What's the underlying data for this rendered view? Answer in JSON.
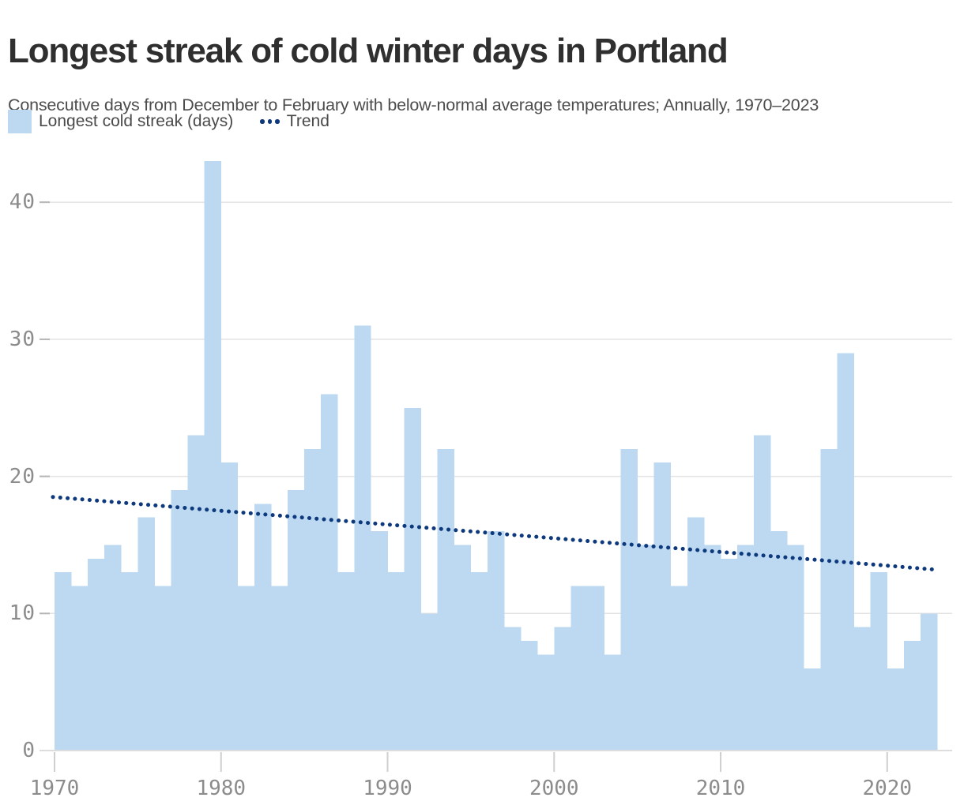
{
  "header": {
    "title": "Longest streak of cold winter days in Portland",
    "subtitle": "Consecutive days from December to February with below-normal average temperatures; Annually, 1970–2023"
  },
  "legend": {
    "series_label": "Longest cold streak (days)",
    "trend_label": "Trend"
  },
  "colors": {
    "bar": "#bcd9f1",
    "trend": "#0e3a7d",
    "gridline": "#e3e3e3",
    "axis_line": "#dddddd",
    "y_tick_stub": "#b5b5b5",
    "x_tick_stub": "#cfcfcf",
    "tick_label": "#8c8c8c",
    "title": "#2f2f2f",
    "subtitle": "#4d4d4d"
  },
  "chart_data": {
    "type": "bar",
    "title": "Longest streak of cold winter days in Portland",
    "xlabel": "",
    "ylabel": "",
    "grid": true,
    "legend_position": "top-left",
    "ylim": [
      0,
      45
    ],
    "y_ticks": [
      0,
      10,
      20,
      30,
      40
    ],
    "x_ticks": [
      1970,
      1980,
      1990,
      2000,
      2010,
      2020
    ],
    "series_name": "Longest cold streak (days)",
    "years": [
      1970,
      1971,
      1972,
      1973,
      1974,
      1975,
      1976,
      1977,
      1978,
      1979,
      1980,
      1981,
      1982,
      1983,
      1984,
      1985,
      1986,
      1987,
      1988,
      1989,
      1990,
      1991,
      1992,
      1993,
      1994,
      1995,
      1996,
      1997,
      1998,
      1999,
      2000,
      2001,
      2002,
      2003,
      2004,
      2005,
      2006,
      2007,
      2008,
      2009,
      2010,
      2011,
      2012,
      2013,
      2014,
      2015,
      2016,
      2017,
      2018,
      2019,
      2020,
      2021,
      2022
    ],
    "values": [
      13,
      12,
      14,
      15,
      13,
      17,
      12,
      19,
      23,
      43,
      21,
      12,
      18,
      12,
      19,
      22,
      26,
      13,
      31,
      16,
      13,
      25,
      10,
      22,
      15,
      13,
      16,
      9,
      8,
      7,
      9,
      12,
      12,
      7,
      22,
      15,
      21,
      12,
      17,
      15,
      14,
      15,
      23,
      16,
      15,
      6,
      22,
      29,
      9,
      13,
      6,
      8,
      10
    ],
    "trend": {
      "name": "Trend",
      "start_value": 18.5,
      "end_value": 13.2
    }
  }
}
